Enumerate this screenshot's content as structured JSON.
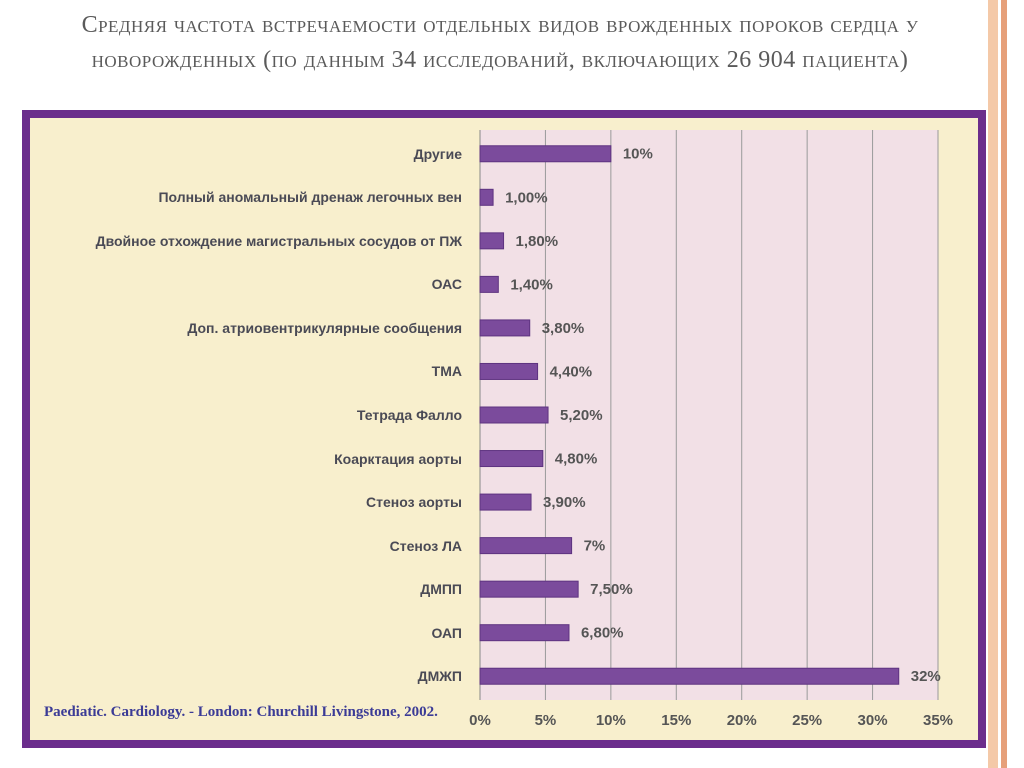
{
  "chart_data": {
    "type": "barh",
    "title": "Средняя частота встречаемости отдельных видов врожденных пороков сердца у новорожденных (по данным 34 исследований, включающих 26 904 пациента)",
    "source": "Paediatic. Cardiology. - London: Churchill Livingstone, 2002.",
    "categories": [
      "Другие",
      "Полный аномальный дренаж легочных вен",
      "Двойное отхождение магистральных сосудов от ПЖ",
      "ОАС",
      "Доп. атриовентрикулярные сообщения",
      "ТМА",
      "Тетрада Фалло",
      "Коарктация аорты",
      "Стеноз аорты",
      "Стеноз ЛА",
      "ДМПП",
      "ОАП",
      "ДМЖП"
    ],
    "values": [
      10,
      1.0,
      1.8,
      1.4,
      3.8,
      4.4,
      5.2,
      4.8,
      3.9,
      7,
      7.5,
      6.8,
      32
    ],
    "value_labels": [
      "10%",
      "1,00%",
      "1,80%",
      "1,40%",
      "3,80%",
      "4,40%",
      "5,20%",
      "4,80%",
      "3,90%",
      "7%",
      "7,50%",
      "6,80%",
      "32%"
    ],
    "color": "#7b4b9c",
    "xlim": [
      0,
      35
    ],
    "xticks": [
      {
        "value": 0,
        "label": "0%"
      },
      {
        "value": 5,
        "label": "5%"
      },
      {
        "value": 10,
        "label": "10%"
      },
      {
        "value": 15,
        "label": "15%"
      },
      {
        "value": 20,
        "label": "20%"
      },
      {
        "value": 25,
        "label": "25%"
      },
      {
        "value": 30,
        "label": "30%"
      },
      {
        "value": 35,
        "label": "35%"
      }
    ],
    "grid": true
  }
}
